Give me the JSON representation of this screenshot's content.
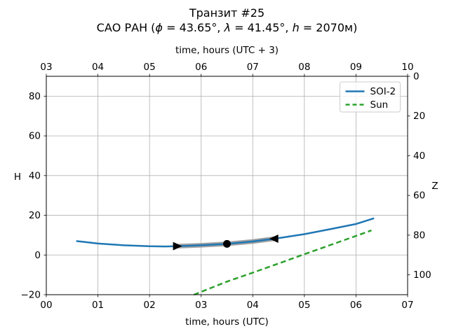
{
  "chart_data": {
    "type": "line",
    "title": "Транзит #25",
    "subtitle_parts": [
      {
        "text": "САО РАН (",
        "italic": false
      },
      {
        "text": "ϕ",
        "italic": true
      },
      {
        "text": " = 43.65°, ",
        "italic": false
      },
      {
        "text": "λ",
        "italic": true
      },
      {
        "text": " = 41.45°, ",
        "italic": false
      },
      {
        "text": "h",
        "italic": true
      },
      {
        "text": " = 2070м)",
        "italic": false
      }
    ],
    "xlabel_top": "time, hours (UTC + 3)",
    "xlabel_bottom": "time, hours (UTC)",
    "ylabel_left": "H",
    "ylabel_right": "Z",
    "xlim": [
      0,
      7
    ],
    "xlim_top": [
      3,
      10
    ],
    "ylim": [
      -20,
      90
    ],
    "grid": true,
    "x_ticks": {
      "values": [
        0,
        1,
        2,
        3,
        4,
        5,
        6,
        7
      ],
      "labels_bottom": [
        "00",
        "01",
        "02",
        "03",
        "04",
        "05",
        "06",
        "07"
      ],
      "labels_top": [
        "03",
        "04",
        "05",
        "06",
        "07",
        "08",
        "09",
        "10"
      ]
    },
    "y_ticks_left": {
      "values": [
        -20,
        0,
        20,
        40,
        60,
        80
      ],
      "labels": [
        "−20",
        "0",
        "20",
        "40",
        "60",
        "80"
      ]
    },
    "y_ticks_right": {
      "note": "Z = 90 - H, axis inverted",
      "values": [
        0,
        20,
        40,
        60,
        80,
        100
      ],
      "labels": [
        "0",
        "20",
        "40",
        "60",
        "80",
        "100"
      ]
    },
    "series": [
      {
        "name": "SOI-2",
        "color": "#1f77b4",
        "style": "solid",
        "x": [
          0.58,
          1.0,
          1.5,
          2.0,
          2.3,
          2.6,
          3.0,
          3.5,
          4.0,
          4.45,
          5.0,
          5.5,
          6.0,
          6.35
        ],
        "y": [
          7.0,
          5.8,
          4.9,
          4.4,
          4.3,
          4.5,
          4.9,
          5.6,
          6.8,
          8.3,
          10.5,
          13.0,
          15.6,
          18.5
        ]
      },
      {
        "name": "Sun",
        "color": "#2ca02c",
        "style": "dashed",
        "x": [
          2.86,
          3.5,
          4.0,
          4.5,
          5.0,
          5.5,
          6.0,
          6.3
        ],
        "y": [
          -20.0,
          -13.4,
          -8.9,
          -4.3,
          0.4,
          5.0,
          9.6,
          12.4
        ]
      }
    ],
    "transit_band": {
      "series": "SOI-2",
      "x_start": 2.53,
      "x_end": 4.42,
      "color": "#909090",
      "opacity": 0.85
    },
    "markers": [
      {
        "name": "transit-start-marker",
        "shape": "triangle-right",
        "x": 2.53,
        "y": 4.45,
        "color": "#000000"
      },
      {
        "name": "culmination-marker",
        "shape": "circle",
        "x": 3.5,
        "y": 5.6,
        "color": "#000000"
      },
      {
        "name": "transit-end-marker",
        "shape": "triangle-left",
        "x": 4.42,
        "y": 8.2,
        "color": "#000000"
      }
    ],
    "legend": {
      "position": "upper right",
      "border_color": "#cccccc",
      "entries": [
        {
          "label": "SOI-2",
          "color": "#1f77b4",
          "style": "solid"
        },
        {
          "label": "Sun",
          "color": "#2ca02c",
          "style": "dashed"
        }
      ]
    },
    "colors": {
      "grid": "#b0b0b0",
      "spine": "#000000",
      "background": "#ffffff"
    }
  }
}
